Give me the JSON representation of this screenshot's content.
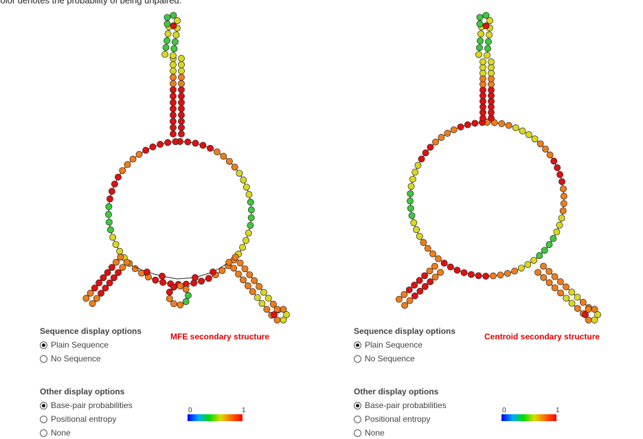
{
  "header": {
    "note": "color denotes the probability of being unpaired."
  },
  "panels": [
    {
      "structure_title": "MFE secondary structure",
      "sequence_options": {
        "title": "Sequence display options",
        "items": [
          {
            "label": "Plain Sequence",
            "checked": true
          },
          {
            "label": "No Sequence",
            "checked": false
          }
        ]
      },
      "other_options": {
        "title": "Other display options",
        "items": [
          {
            "label": "Base-pair probabilities",
            "checked": true
          },
          {
            "label": "Positional entropy",
            "checked": false
          },
          {
            "label": "None",
            "checked": false
          }
        ]
      },
      "colorbar": {
        "min": "0",
        "max": "1"
      }
    },
    {
      "structure_title": "Centroid secondary structure",
      "sequence_options": {
        "title": "Sequence display options",
        "items": [
          {
            "label": "Plain Sequence",
            "checked": true
          },
          {
            "label": "No Sequence",
            "checked": false
          }
        ]
      },
      "other_options": {
        "title": "Other display options",
        "items": [
          {
            "label": "Base-pair probabilities",
            "checked": true
          },
          {
            "label": "Positional entropy",
            "checked": false
          },
          {
            "label": "None",
            "checked": false
          }
        ]
      },
      "colorbar": {
        "min": "0",
        "max": "1"
      }
    }
  ],
  "colors": {
    "high": "#e01010",
    "mid": "#f07d1a",
    "low": "#3ec83e",
    "yellow": "#d8d820"
  }
}
